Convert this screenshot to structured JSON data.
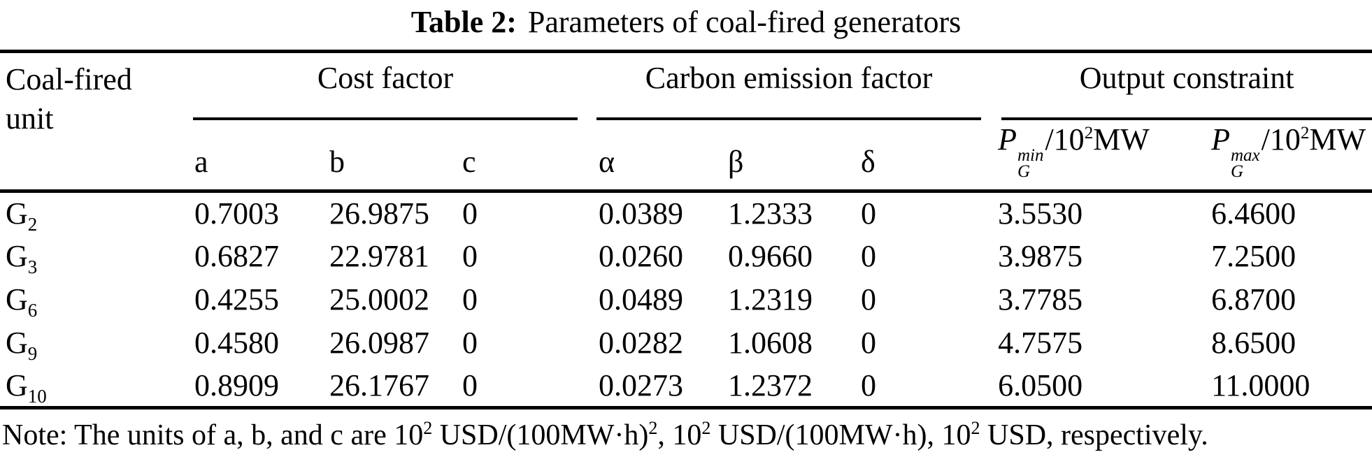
{
  "title": {
    "label": "Table 2:",
    "text": "Parameters of coal-fired generators"
  },
  "table": {
    "unit_header": {
      "line1": "Coal-fired",
      "line2": "unit"
    },
    "groups": [
      {
        "label": "Cost factor"
      },
      {
        "label": "Carbon emission factor"
      },
      {
        "label": "Output constraint"
      }
    ],
    "subheaders": {
      "a": "a",
      "b": "b",
      "c": "c",
      "alpha": "α",
      "beta": "β",
      "delta": "δ",
      "pmin": {
        "p": "P",
        "sup": "min",
        "sub": "G",
        "rest": "/10",
        "exp": "2",
        "unit": "MW"
      },
      "pmax": {
        "p": "P",
        "sup": "max",
        "sub": "G",
        "rest": "/10",
        "exp": "2",
        "unit": "MW"
      }
    },
    "rows": [
      {
        "unit": "G",
        "unit_sub": "2",
        "a": "0.7003",
        "b": "26.9875",
        "c": "0",
        "alpha": "0.0389",
        "beta": "1.2333",
        "delta": "0",
        "pmin": "3.5530",
        "pmax": "6.4600"
      },
      {
        "unit": "G",
        "unit_sub": "3",
        "a": "0.6827",
        "b": "22.9781",
        "c": "0",
        "alpha": "0.0260",
        "beta": "0.9660",
        "delta": "0",
        "pmin": "3.9875",
        "pmax": "7.2500"
      },
      {
        "unit": "G",
        "unit_sub": "6",
        "a": "0.4255",
        "b": "25.0002",
        "c": "0",
        "alpha": "0.0489",
        "beta": "1.2319",
        "delta": "0",
        "pmin": "3.7785",
        "pmax": "6.8700"
      },
      {
        "unit": "G",
        "unit_sub": "9",
        "a": "0.4580",
        "b": "26.0987",
        "c": "0",
        "alpha": "0.0282",
        "beta": "1.0608",
        "delta": "0",
        "pmin": "4.7575",
        "pmax": "8.6500"
      },
      {
        "unit": "G",
        "unit_sub": "10",
        "a": "0.8909",
        "b": "26.1767",
        "c": "0",
        "alpha": "0.0273",
        "beta": "1.2372",
        "delta": "0",
        "pmin": "6.0500",
        "pmax": "11.0000"
      }
    ]
  },
  "note": {
    "segments": [
      "Note: The units of a, b, and c are 10",
      "2",
      " USD/(100MW·h)",
      "2",
      ", 10",
      "2",
      " USD/(100MW·h), 10",
      "2",
      " USD, respectively."
    ]
  },
  "colors": {
    "text": "#000000",
    "background": "#ffffff",
    "rule": "#000000"
  }
}
